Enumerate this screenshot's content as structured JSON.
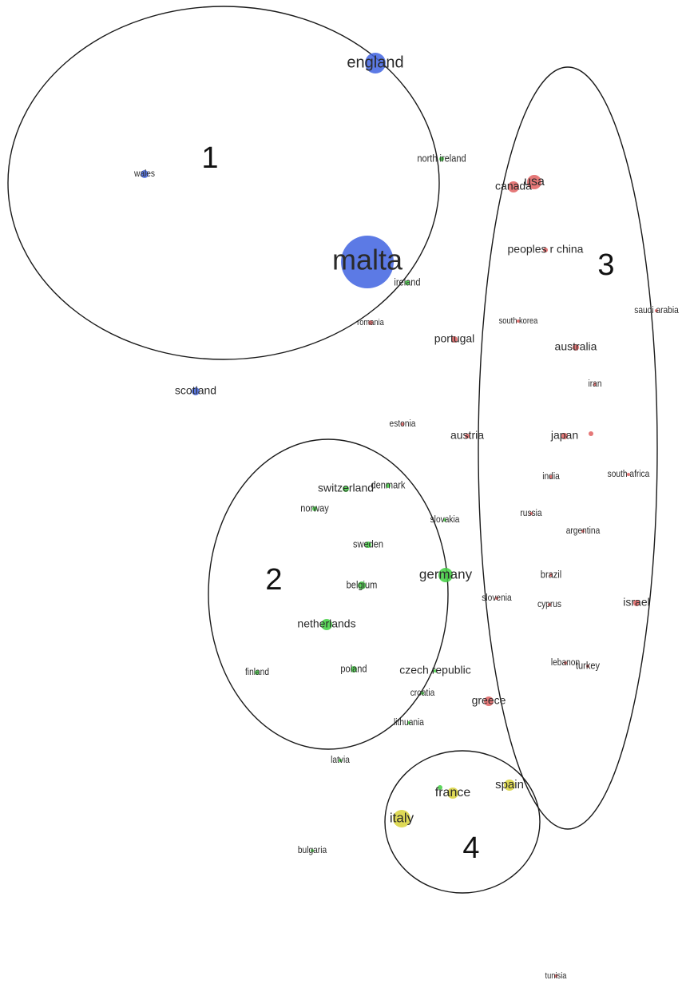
{
  "colors": {
    "blue": "#3f63e0",
    "green": "#3fcf3f",
    "red": "#e06060",
    "yellow": "#d8d23a"
  },
  "clusters": [
    {
      "id": "cluster-1",
      "label": "1"
    },
    {
      "id": "cluster-2",
      "label": "2"
    },
    {
      "id": "cluster-3",
      "label": "3"
    },
    {
      "id": "cluster-4",
      "label": "4"
    }
  ],
  "nodes": [
    {
      "id": "england",
      "label": "england",
      "group": "blue"
    },
    {
      "id": "wales",
      "label": "wales",
      "group": "blue"
    },
    {
      "id": "malta",
      "label": "malta",
      "group": "blue"
    },
    {
      "id": "scotland",
      "label": "scotland",
      "group": "blue"
    },
    {
      "id": "north-ireland",
      "label": "north ireland",
      "group": "green"
    },
    {
      "id": "ireland",
      "label": "ireland",
      "group": "green"
    },
    {
      "id": "romania",
      "label": "romania",
      "group": "red"
    },
    {
      "id": "canada",
      "label": "canada",
      "group": "red"
    },
    {
      "id": "usa",
      "label": "usa",
      "group": "red"
    },
    {
      "id": "peoples-r-china",
      "label": "peoples r china",
      "group": "red"
    },
    {
      "id": "saudi-arabia",
      "label": "saudi arabia",
      "group": "red"
    },
    {
      "id": "south-korea",
      "label": "south korea",
      "group": "red"
    },
    {
      "id": "portugal",
      "label": "portugal",
      "group": "red"
    },
    {
      "id": "australia",
      "label": "australia",
      "group": "red"
    },
    {
      "id": "iran",
      "label": "iran",
      "group": "red"
    },
    {
      "id": "estonia",
      "label": "estonia",
      "group": "red"
    },
    {
      "id": "austria",
      "label": "austria",
      "group": "red"
    },
    {
      "id": "japan",
      "label": "japan",
      "group": "red"
    },
    {
      "id": "japan-extra",
      "label": "",
      "group": "red"
    },
    {
      "id": "india",
      "label": "india",
      "group": "red"
    },
    {
      "id": "south-africa",
      "label": "south africa",
      "group": "red"
    },
    {
      "id": "russia",
      "label": "russia",
      "group": "red"
    },
    {
      "id": "argentina",
      "label": "argentina",
      "group": "red"
    },
    {
      "id": "brazil",
      "label": "brazil",
      "group": "red"
    },
    {
      "id": "cyprus",
      "label": "cyprus",
      "group": "red"
    },
    {
      "id": "israel",
      "label": "israel",
      "group": "red"
    },
    {
      "id": "slovenia",
      "label": "slovenia",
      "group": "red"
    },
    {
      "id": "lebanon",
      "label": "lebanon",
      "group": "red"
    },
    {
      "id": "turkey",
      "label": "turkey",
      "group": "red"
    },
    {
      "id": "greece",
      "label": "greece",
      "group": "red"
    },
    {
      "id": "switzerland",
      "label": "switzerland",
      "group": "green"
    },
    {
      "id": "denmark",
      "label": "denmark",
      "group": "green"
    },
    {
      "id": "norway",
      "label": "norway",
      "group": "green"
    },
    {
      "id": "slovakia",
      "label": "slovakia",
      "group": "green"
    },
    {
      "id": "sweden",
      "label": "sweden",
      "group": "green"
    },
    {
      "id": "germany",
      "label": "germany",
      "group": "green"
    },
    {
      "id": "belgium",
      "label": "belgium",
      "group": "green"
    },
    {
      "id": "netherlands",
      "label": "netherlands",
      "group": "green"
    },
    {
      "id": "finland",
      "label": "finland",
      "group": "green"
    },
    {
      "id": "poland",
      "label": "poland",
      "group": "green"
    },
    {
      "id": "czech-republic",
      "label": "czech republic",
      "group": "green"
    },
    {
      "id": "croatia",
      "label": "croatia",
      "group": "green"
    },
    {
      "id": "lithuania",
      "label": "lithuania",
      "group": "green"
    },
    {
      "id": "latvia",
      "label": "latvia",
      "group": "green"
    },
    {
      "id": "spain",
      "label": "spain",
      "group": "yellow"
    },
    {
      "id": "france",
      "label": "france",
      "group": "yellow"
    },
    {
      "id": "france-green",
      "label": "",
      "group": "green"
    },
    {
      "id": "italy",
      "label": "italy",
      "group": "yellow"
    },
    {
      "id": "bulgaria",
      "label": "bulgaria",
      "group": "green"
    },
    {
      "id": "tunisia",
      "label": "tunisia",
      "group": "red"
    }
  ]
}
